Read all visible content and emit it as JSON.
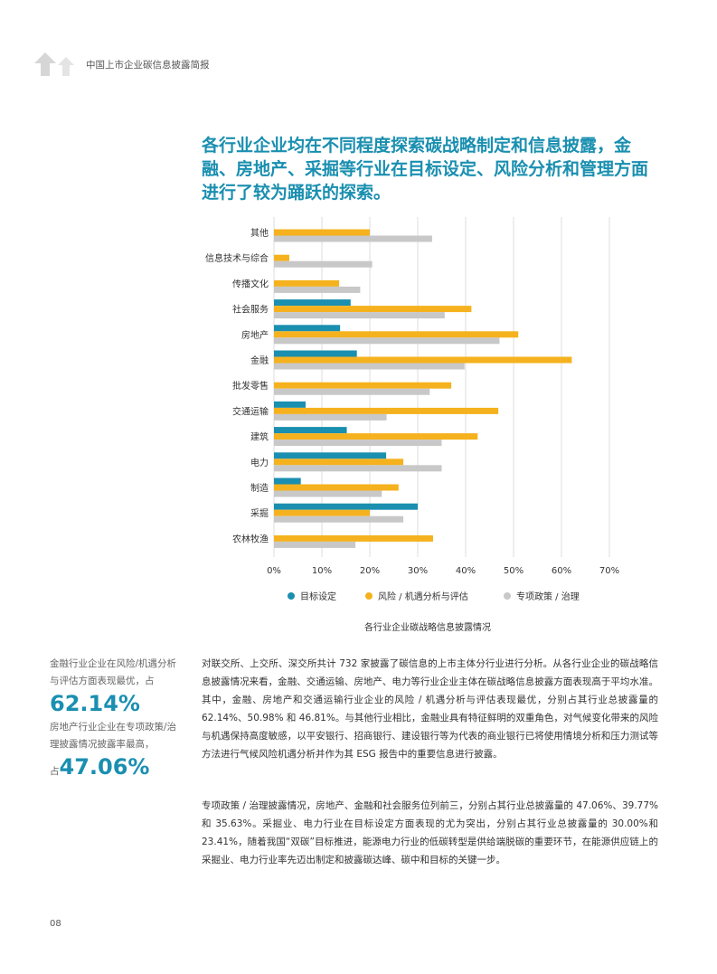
{
  "header": {
    "title": "中国上市企业碳信息披露简报"
  },
  "headline": "各行业企业均在不同程度探索碳战略制定和信息披露，金融、房地产、采掘等行业在目标设定、风险分析和管理方面进行了较为踊跃的探索。",
  "chart_data": {
    "type": "bar",
    "orientation": "horizontal",
    "title": "各行业企业碳战略信息披露情况",
    "categories": [
      "其他",
      "信息技术与综合",
      "传播文化",
      "社会服务",
      "房地产",
      "金融",
      "批发零售",
      "交通运输",
      "建筑",
      "电力",
      "制造",
      "采掘",
      "农林牧渔"
    ],
    "series": [
      {
        "name": "目标设定",
        "color": "#1a8fb0",
        "values": [
          0,
          0,
          0,
          16.0,
          13.8,
          17.3,
          0,
          6.6,
          15.2,
          23.41,
          5.6,
          30.0,
          0
        ]
      },
      {
        "name": "风险 / 机遇分析与评估",
        "color": "#f5b21e",
        "values": [
          20.0,
          3.2,
          13.6,
          41.2,
          50.98,
          62.14,
          37.0,
          46.81,
          42.5,
          27.0,
          26.0,
          20.0,
          33.2
        ]
      },
      {
        "name": "专项政策 / 治理",
        "color": "#c8c8c8",
        "values": [
          33.0,
          20.5,
          18.0,
          35.63,
          47.06,
          39.77,
          32.5,
          23.5,
          35.0,
          35.0,
          22.5,
          27.0,
          17.0
        ]
      }
    ],
    "xlim": [
      0,
      70
    ],
    "xticks": [
      "0%",
      "10%",
      "20%",
      "30%",
      "40%",
      "50%",
      "60%",
      "70%"
    ],
    "grid": true,
    "legend_position": "bottom"
  },
  "sidebar": {
    "text1": "金融行业企业在风险/机遇分析与评估方面表现最优，占",
    "value1": "62.14%",
    "text2": "房地产行业企业在专项政策/治理披露情况披露率最高，",
    "prefix2": "占",
    "value2": "47.06%"
  },
  "body": {
    "p1": "对联交所、上交所、深交所共计 732 家披露了碳信息的上市主体分行业进行分析。从各行业企业的碳战略信息披露情况来看，金融、交通运输、房地产、电力等行业企业主体在碳战略信息披露方面表现高于平均水准。其中，金融、房地产和交通运输行业企业的风险 / 机遇分析与评估表现最优，分别占其行业总披露量的 62.14%、50.98% 和 46.81%。与其他行业相比，金融业具有特征鲜明的双重角色，对气候变化带来的风险与机遇保持高度敏感，以平安银行、招商银行、建设银行等为代表的商业银行已将使用情境分析和压力测试等方法进行气候风险机遇分析并作为其 ESG 报告中的重要信息进行披露。",
    "p2": "专项政策 / 治理披露情况，房地产、金融和社会服务位列前三，分别占其行业总披露量的 47.06%、39.77% 和 35.63%。采掘业、电力行业在目标设定方面表现的尤为突出，分别占其行业总披露量的 30.00%和 23.41%，随着我国“双碳”目标推进，能源电力行业的低碳转型是供给端脱碳的重要环节，在能源供应链上的采掘业、电力行业率先迈出制定和披露碳达峰、碳中和目标的关键一步。"
  },
  "page_number": "08"
}
